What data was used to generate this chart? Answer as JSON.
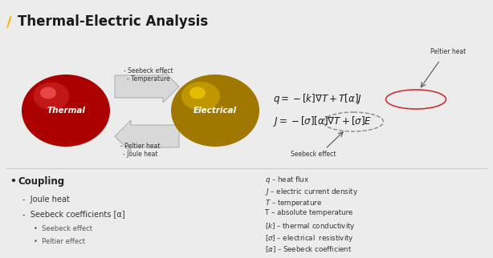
{
  "title": "Thermal-Electric Analysis",
  "title_slash_color": "#FFB300",
  "bg_color": "#ececec",
  "thermal_label": "Thermal",
  "electrical_label": "Electrical",
  "thermal_color_outer": "#aa0000",
  "thermal_color_mid": "#cc2222",
  "thermal_color_inner": "#ff6666",
  "electrical_color_outer": "#a07800",
  "electrical_color_mid": "#c8a000",
  "electrical_color_inner": "#FFD700",
  "arrow_up_text1": "- Seebeck effect",
  "arrow_up_text2": "- Temperature",
  "arrow_down_text1": "- Peltier heat",
  "arrow_down_text2": "- Joule heat",
  "peltier_label": "Peltier heat",
  "seebeck_label": "Seebeck effect",
  "coupling_title": "Coupling",
  "coupling_items": [
    "Joule heat",
    "Seebeck coefficients [α]"
  ],
  "sub_items": [
    "Seebeck effect",
    "Peltier effect"
  ],
  "legend_items": [
    "$q$ – heat flux",
    "$J$ – electric current density",
    "$T$ – temperature",
    "T – absolute temperature",
    "$[k]$ – thermal conductivity",
    "[$\\sigma$] – electrical  resistivity",
    "[$\\alpha$] – Seebeck coefficient"
  ]
}
